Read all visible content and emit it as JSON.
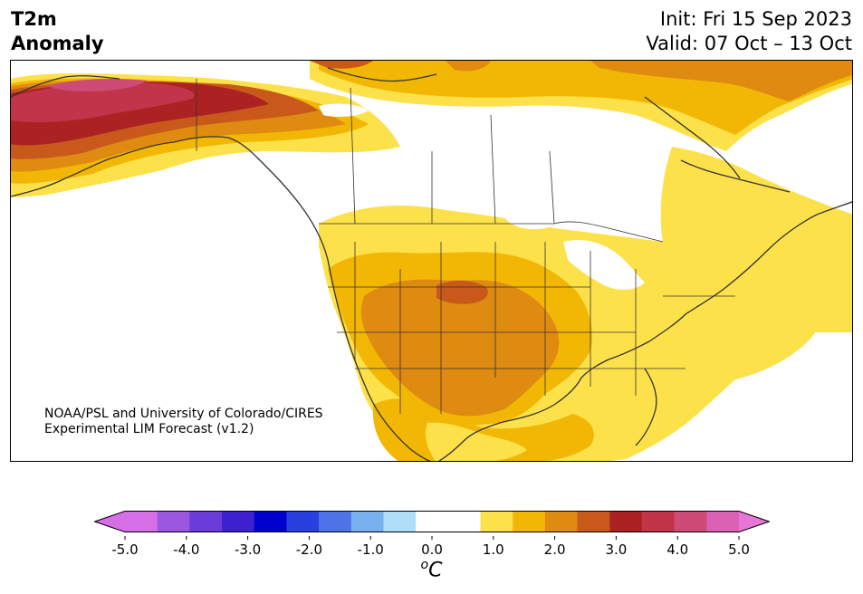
{
  "title": {
    "line1": "T2m",
    "line2": "Anomaly"
  },
  "init": "Init: Fri 15 Sep 2023",
  "valid": "Valid: 07 Oct – 13 Oct",
  "credit": {
    "line1": "NOAA/PSL and University of Colorado/CIRES",
    "line2": "Experimental LIM Forecast (v1.2)"
  },
  "colorbar": {
    "ticks": [
      "-5.0",
      "-4.0",
      "-3.0",
      "-2.0",
      "-1.0",
      "0.0",
      "1.0",
      "2.0",
      "3.0",
      "4.0",
      "5.0"
    ],
    "unit_main": "C",
    "unit_sup": "o",
    "colors": [
      "#d66fe7",
      "#9b57df",
      "#6b3cd8",
      "#3d21cf",
      "#0000cc",
      "#2740df",
      "#4d74e6",
      "#79b0f0",
      "#aeddf7",
      "#ffffff",
      "#ffffff",
      "#fde14a",
      "#f2b705",
      "#df8a10",
      "#c9591b",
      "#ac2222",
      "#c1344a",
      "#ce4b78",
      "#db61b4"
    ],
    "extend_low": "#d66fe7",
    "extend_high": "#e876d6"
  },
  "legend_colors": {
    "yellow": "#fde14a",
    "orange_light": "#f2b705",
    "orange": "#df8a10",
    "orange_dark": "#c9591b",
    "red": "#ac2222",
    "crimson": "#c1344a",
    "pink": "#ce4b78"
  }
}
